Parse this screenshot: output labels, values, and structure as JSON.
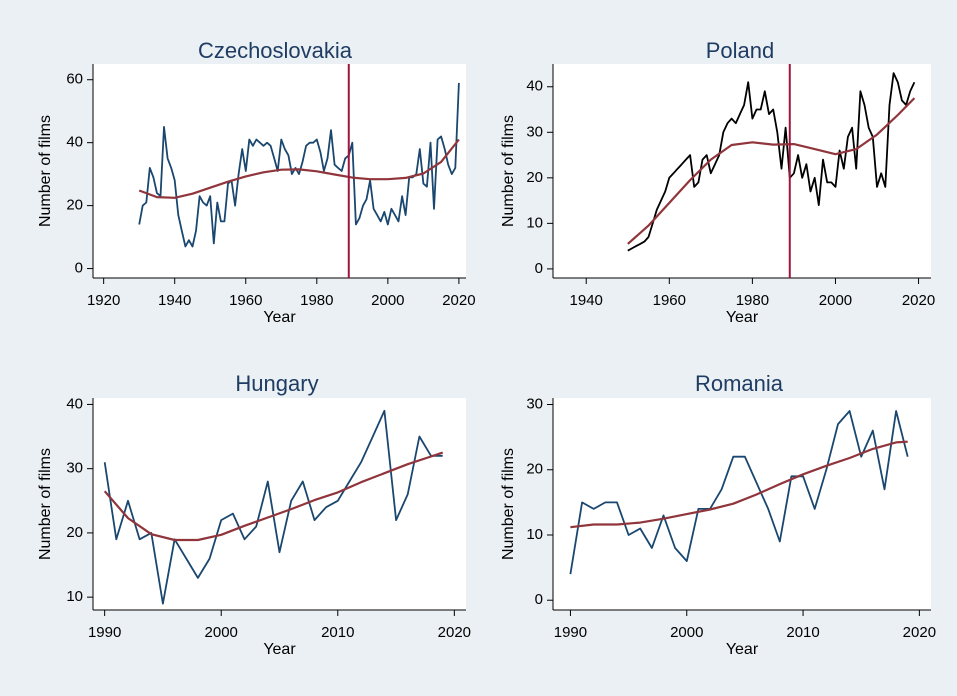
{
  "colors": {
    "background": "#ebf0f4",
    "plot_area": "#ffffff",
    "title": "#1f3c63",
    "series_blue": "#1a476f",
    "series_black": "#000000",
    "trend": "#90353b",
    "vline": "#a0153e",
    "axis": "#000000"
  },
  "chart_data": [
    {
      "type": "line",
      "title": "Czechoslovakia",
      "xlabel": "Year",
      "ylabel": "Number of films",
      "xlim": [
        1917,
        2022
      ],
      "ylim": [
        -3,
        65
      ],
      "xticks": [
        1920,
        1940,
        1960,
        1980,
        2000,
        2020
      ],
      "yticks": [
        0,
        20,
        40,
        60
      ],
      "vline": 1989,
      "line_color": "series_blue",
      "series": [
        {
          "x": [
            1930,
            1931,
            1932,
            1933,
            1934,
            1935,
            1936,
            1937,
            1938,
            1939,
            1940,
            1941,
            1942,
            1943,
            1944,
            1945,
            1946,
            1947,
            1948,
            1949,
            1950,
            1951,
            1952,
            1953,
            1954,
            1955,
            1956,
            1957,
            1958,
            1959,
            1960,
            1961,
            1962,
            1963,
            1964,
            1965,
            1966,
            1967,
            1968,
            1969,
            1970,
            1971,
            1972,
            1973,
            1974,
            1975,
            1976,
            1977,
            1978,
            1979,
            1980,
            1981,
            1982,
            1983,
            1984,
            1985,
            1986,
            1987,
            1988,
            1989,
            1990,
            1991,
            1992,
            1993,
            1994,
            1995,
            1996,
            1997,
            1998,
            1999,
            2000,
            2001,
            2002,
            2003,
            2004,
            2005,
            2006,
            2007,
            2008,
            2009,
            2010,
            2011,
            2012,
            2013,
            2014,
            2015,
            2016,
            2017,
            2018,
            2019,
            2020
          ],
          "y": [
            14,
            20,
            21,
            32,
            29,
            24,
            23,
            45,
            35,
            32,
            28,
            17,
            12,
            7,
            9,
            7,
            12,
            23,
            21,
            20,
            23,
            8,
            21,
            15,
            15,
            27,
            28,
            20,
            30,
            38,
            31,
            41,
            39,
            41,
            40,
            39,
            40,
            39,
            35,
            31,
            41,
            38,
            36,
            30,
            32,
            30,
            34,
            39,
            40,
            40,
            41,
            37,
            31,
            35,
            44,
            33,
            32,
            31,
            35,
            36,
            40,
            14,
            16,
            20,
            22,
            28,
            19,
            17,
            15,
            18,
            14,
            19,
            17,
            15,
            23,
            17,
            29,
            29,
            30,
            38,
            27,
            26,
            40,
            19,
            41,
            42,
            38,
            33,
            30,
            32,
            59
          ]
        },
        {
          "name": "",
          "x": [
            1930,
            1935,
            1940,
            1945,
            1950,
            1955,
            1960,
            1965,
            1970,
            1975,
            1980,
            1985,
            1990,
            1995,
            2000,
            2005,
            2010,
            2015,
            2020
          ],
          "y": [
            24.8,
            22.7,
            22.5,
            23.8,
            25.7,
            27.6,
            29.3,
            30.6,
            31.4,
            31.5,
            30.9,
            29.9,
            28.9,
            28.4,
            28.4,
            28.8,
            30.2,
            33.9,
            41
          ]
        }
      ]
    },
    {
      "type": "line",
      "title": "Poland",
      "xlabel": "Year",
      "ylabel": "Number of films",
      "xlim": [
        1932,
        2023
      ],
      "ylim": [
        -2,
        45
      ],
      "xticks": [
        1940,
        1960,
        1980,
        2000,
        2020
      ],
      "yticks": [
        0,
        10,
        20,
        30,
        40
      ],
      "vline": 1989,
      "line_color": "series_black",
      "series": [
        {
          "x": [
            1950,
            1951,
            1952,
            1953,
            1954,
            1955,
            1956,
            1957,
            1958,
            1959,
            1960,
            1961,
            1962,
            1963,
            1964,
            1965,
            1966,
            1967,
            1968,
            1969,
            1970,
            1971,
            1972,
            1973,
            1974,
            1975,
            1976,
            1977,
            1978,
            1979,
            1980,
            1981,
            1982,
            1983,
            1984,
            1985,
            1986,
            1987,
            1988,
            1989,
            1990,
            1991,
            1992,
            1993,
            1994,
            1995,
            1996,
            1997,
            1998,
            1999,
            2000,
            2001,
            2002,
            2003,
            2004,
            2005,
            2006,
            2007,
            2008,
            2009,
            2010,
            2011,
            2012,
            2013,
            2014,
            2015,
            2016,
            2017,
            2018,
            2019
          ],
          "y": [
            4,
            4.5,
            5,
            5.5,
            6,
            7,
            10,
            13,
            15,
            17,
            20,
            21,
            22,
            23,
            24,
            25,
            18,
            19,
            24,
            25,
            21,
            23,
            25,
            30,
            32,
            33,
            32,
            34,
            36,
            41,
            33,
            35,
            35,
            39,
            34,
            35,
            30,
            22,
            31,
            20,
            21,
            25,
            20,
            23,
            17,
            20,
            14,
            24,
            19,
            19,
            18,
            26,
            22,
            29,
            31,
            22,
            39,
            36,
            31,
            29,
            18,
            21,
            18,
            36,
            43,
            41,
            37,
            36,
            39,
            41
          ]
        },
        {
          "name": "",
          "x": [
            1950,
            1955,
            1960,
            1965,
            1970,
            1975,
            1980,
            1985,
            1990,
            1995,
            2000,
            2005,
            2010,
            2015,
            2019
          ],
          "y": [
            5.5,
            9.5,
            14.5,
            19.5,
            24,
            27.2,
            27.8,
            27.3,
            27.4,
            26.3,
            25.2,
            26.3,
            29.5,
            33.8,
            37.5
          ]
        }
      ]
    },
    {
      "type": "line",
      "title": "Hungary",
      "xlabel": "Year",
      "ylabel": "Number of films",
      "xlim": [
        1989,
        2021
      ],
      "ylim": [
        8,
        41
      ],
      "xticks": [
        1990,
        2000,
        2010,
        2020
      ],
      "yticks": [
        10,
        20,
        30,
        40
      ],
      "vline": null,
      "line_color": "series_blue",
      "series": [
        {
          "x": [
            1990,
            1991,
            1992,
            1993,
            1994,
            1995,
            1996,
            1997,
            1998,
            1999,
            2000,
            2001,
            2002,
            2003,
            2004,
            2005,
            2006,
            2007,
            2008,
            2009,
            2010,
            2011,
            2012,
            2013,
            2014,
            2015,
            2016,
            2017,
            2018,
            2019
          ],
          "y": [
            31,
            19,
            25,
            19,
            20,
            9,
            19,
            16,
            13,
            16,
            22,
            23,
            19,
            21,
            28,
            17,
            25,
            28,
            22,
            24,
            25,
            28,
            31,
            35,
            39,
            22,
            26,
            35,
            32,
            32
          ]
        },
        {
          "name": "",
          "x": [
            1990,
            1992,
            1994,
            1996,
            1998,
            2000,
            2002,
            2004,
            2006,
            2008,
            2010,
            2012,
            2014,
            2016,
            2018,
            2019
          ],
          "y": [
            26.5,
            22.3,
            19.8,
            18.9,
            18.9,
            19.7,
            21.1,
            22.4,
            23.7,
            25.1,
            26.3,
            27.9,
            29.3,
            30.7,
            31.9,
            32.5
          ]
        }
      ]
    },
    {
      "type": "line",
      "title": "Romania",
      "xlabel": "Year",
      "ylabel": "Number of films",
      "xlim": [
        1988.5,
        2021
      ],
      "ylim": [
        -1.5,
        31
      ],
      "xticks": [
        1990,
        2000,
        2010,
        2020
      ],
      "yticks": [
        0,
        10,
        20,
        30
      ],
      "vline": null,
      "line_color": "series_blue",
      "series": [
        {
          "x": [
            1990,
            1991,
            1992,
            1993,
            1994,
            1995,
            1996,
            1997,
            1998,
            1999,
            2000,
            2001,
            2002,
            2003,
            2004,
            2005,
            2006,
            2007,
            2008,
            2009,
            2010,
            2011,
            2012,
            2013,
            2014,
            2015,
            2016,
            2017,
            2018,
            2019
          ],
          "y": [
            4,
            15,
            14,
            15,
            15,
            10,
            11,
            8,
            13,
            8,
            6,
            14,
            14,
            17,
            22,
            22,
            18,
            14,
            9,
            19,
            19,
            14,
            20,
            27,
            29,
            22,
            26,
            17,
            29,
            22
          ]
        },
        {
          "name": "",
          "x": [
            1990,
            1992,
            1994,
            1996,
            1998,
            2000,
            2002,
            2004,
            2006,
            2008,
            2010,
            2012,
            2014,
            2016,
            2018,
            2019
          ],
          "y": [
            11.2,
            11.6,
            11.6,
            11.9,
            12.5,
            13.2,
            13.9,
            14.8,
            16.2,
            17.8,
            19.3,
            20.6,
            21.8,
            23.2,
            24.2,
            24.3
          ]
        }
      ]
    }
  ]
}
